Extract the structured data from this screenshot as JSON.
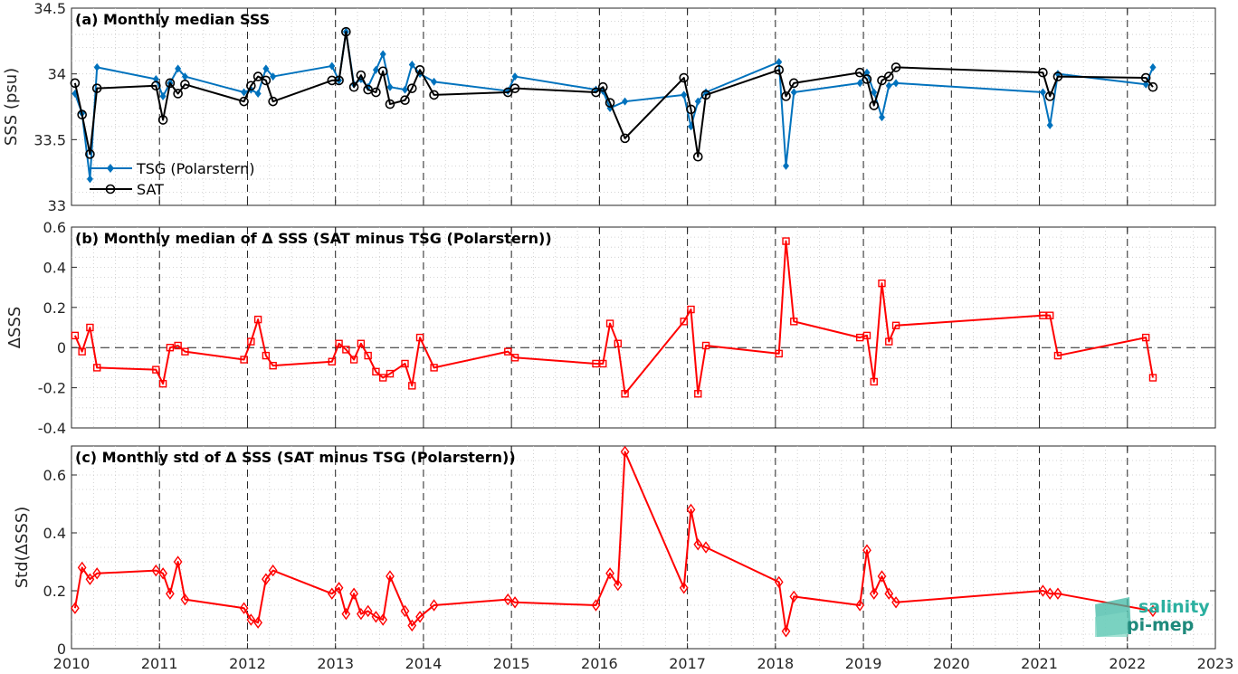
{
  "chart_data": [
    {
      "type": "line",
      "title": "(a) Monthly median SSS",
      "ylabel": "SSS (psu)",
      "xlim": [
        2010,
        2023
      ],
      "ylim": [
        33,
        34.5
      ],
      "yticks": [
        "33",
        "33.5",
        "34",
        "34.5"
      ],
      "xticks": [
        "2010",
        "2011",
        "2012",
        "2013",
        "2014",
        "2015",
        "2016",
        "2017",
        "2018",
        "2019",
        "2020",
        "2021",
        "2022",
        "2023"
      ],
      "grid": "dotted minor, dashed yearly verticals",
      "legend_position": "lower-left",
      "series": [
        {
          "name": "TSG (Polarstern)",
          "color": "#0072BD",
          "marker": "filled-diamond",
          "points": [
            [
              2010.04,
              33.85
            ],
            [
              2010.12,
              33.7
            ],
            [
              2010.21,
              33.2
            ],
            [
              2010.29,
              34.05
            ],
            [
              2010.96,
              33.96
            ],
            [
              2011.04,
              33.83
            ],
            [
              2011.12,
              33.93
            ],
            [
              2011.21,
              34.04
            ],
            [
              2011.29,
              33.98
            ],
            [
              2011.96,
              33.86
            ],
            [
              2012.04,
              33.88
            ],
            [
              2012.12,
              33.85
            ],
            [
              2012.21,
              34.04
            ],
            [
              2012.29,
              33.98
            ],
            [
              2012.96,
              34.06
            ],
            [
              2013.04,
              33.95
            ],
            [
              2013.12,
              34.32
            ],
            [
              2013.21,
              33.92
            ],
            [
              2013.29,
              33.96
            ],
            [
              2013.37,
              33.9
            ],
            [
              2013.46,
              34.03
            ],
            [
              2013.54,
              34.15
            ],
            [
              2013.62,
              33.9
            ],
            [
              2013.79,
              33.88
            ],
            [
              2013.87,
              34.07
            ],
            [
              2013.96,
              34.0
            ],
            [
              2014.12,
              33.94
            ],
            [
              2014.96,
              33.87
            ],
            [
              2015.04,
              33.98
            ],
            [
              2015.96,
              33.88
            ],
            [
              2016.04,
              33.87
            ],
            [
              2016.12,
              33.74
            ],
            [
              2016.29,
              33.79
            ],
            [
              2016.96,
              33.84
            ],
            [
              2017.04,
              33.6
            ],
            [
              2017.12,
              33.79
            ],
            [
              2017.21,
              33.86
            ],
            [
              2018.04,
              34.09
            ],
            [
              2018.12,
              33.3
            ],
            [
              2018.21,
              33.86
            ],
            [
              2018.96,
              33.93
            ],
            [
              2019.04,
              34.01
            ],
            [
              2019.12,
              33.86
            ],
            [
              2019.21,
              33.67
            ],
            [
              2019.29,
              33.91
            ],
            [
              2019.37,
              33.93
            ],
            [
              2021.04,
              33.86
            ],
            [
              2021.12,
              33.61
            ],
            [
              2021.21,
              34.0
            ],
            [
              2022.21,
              33.92
            ],
            [
              2022.29,
              34.05
            ]
          ]
        },
        {
          "name": "SAT",
          "color": "#000000",
          "marker": "open-circle",
          "points": [
            [
              2010.04,
              33.93
            ],
            [
              2010.12,
              33.69
            ],
            [
              2010.21,
              33.39
            ],
            [
              2010.29,
              33.89
            ],
            [
              2010.96,
              33.91
            ],
            [
              2011.04,
              33.65
            ],
            [
              2011.12,
              33.93
            ],
            [
              2011.21,
              33.85
            ],
            [
              2011.29,
              33.92
            ],
            [
              2011.96,
              33.79
            ],
            [
              2012.04,
              33.91
            ],
            [
              2012.12,
              33.98
            ],
            [
              2012.21,
              33.95
            ],
            [
              2012.29,
              33.79
            ],
            [
              2012.96,
              33.95
            ],
            [
              2013.04,
              33.95
            ],
            [
              2013.12,
              34.32
            ],
            [
              2013.21,
              33.9
            ],
            [
              2013.29,
              33.99
            ],
            [
              2013.37,
              33.88
            ],
            [
              2013.46,
              33.86
            ],
            [
              2013.54,
              34.02
            ],
            [
              2013.62,
              33.77
            ],
            [
              2013.79,
              33.8
            ],
            [
              2013.87,
              33.89
            ],
            [
              2013.96,
              34.03
            ],
            [
              2014.12,
              33.84
            ],
            [
              2014.96,
              33.86
            ],
            [
              2015.04,
              33.89
            ],
            [
              2015.96,
              33.86
            ],
            [
              2016.04,
              33.9
            ],
            [
              2016.12,
              33.78
            ],
            [
              2016.29,
              33.51
            ],
            [
              2016.96,
              33.97
            ],
            [
              2017.04,
              33.73
            ],
            [
              2017.12,
              33.37
            ],
            [
              2017.21,
              33.84
            ],
            [
              2018.04,
              34.03
            ],
            [
              2018.12,
              33.83
            ],
            [
              2018.21,
              33.93
            ],
            [
              2018.96,
              34.01
            ],
            [
              2019.04,
              33.96
            ],
            [
              2019.12,
              33.76
            ],
            [
              2019.21,
              33.95
            ],
            [
              2019.29,
              33.98
            ],
            [
              2019.37,
              34.05
            ],
            [
              2021.04,
              34.01
            ],
            [
              2021.12,
              33.83
            ],
            [
              2021.21,
              33.98
            ],
            [
              2022.21,
              33.97
            ],
            [
              2022.29,
              33.9
            ]
          ]
        }
      ]
    },
    {
      "type": "line",
      "title": "(b) Monthly median of Δ SSS (SAT minus TSG (Polarstern))",
      "ylabel": "ΔSSS",
      "xlim": [
        2010,
        2023
      ],
      "ylim": [
        -0.4,
        0.6
      ],
      "yticks": [
        "-0.4",
        "-0.2",
        "0",
        "0.2",
        "0.4",
        "0.6"
      ],
      "xticks": [
        "2010",
        "2011",
        "2012",
        "2013",
        "2014",
        "2015",
        "2016",
        "2017",
        "2018",
        "2019",
        "2020",
        "2021",
        "2022",
        "2023"
      ],
      "zero_line": "dashed",
      "series": [
        {
          "color": "#FF0000",
          "marker": "open-square",
          "points": [
            [
              2010.04,
              0.06
            ],
            [
              2010.12,
              -0.02
            ],
            [
              2010.21,
              0.1
            ],
            [
              2010.29,
              -0.1
            ],
            [
              2010.96,
              -0.11
            ],
            [
              2011.04,
              -0.18
            ],
            [
              2011.12,
              0.0
            ],
            [
              2011.21,
              0.01
            ],
            [
              2011.29,
              -0.02
            ],
            [
              2011.96,
              -0.06
            ],
            [
              2012.04,
              0.03
            ],
            [
              2012.12,
              0.14
            ],
            [
              2012.21,
              -0.04
            ],
            [
              2012.29,
              -0.09
            ],
            [
              2012.96,
              -0.07
            ],
            [
              2013.04,
              0.02
            ],
            [
              2013.12,
              -0.01
            ],
            [
              2013.21,
              -0.06
            ],
            [
              2013.29,
              0.02
            ],
            [
              2013.37,
              -0.04
            ],
            [
              2013.46,
              -0.12
            ],
            [
              2013.54,
              -0.15
            ],
            [
              2013.62,
              -0.13
            ],
            [
              2013.79,
              -0.08
            ],
            [
              2013.87,
              -0.19
            ],
            [
              2013.96,
              0.05
            ],
            [
              2014.12,
              -0.1
            ],
            [
              2014.96,
              -0.02
            ],
            [
              2015.04,
              -0.05
            ],
            [
              2015.96,
              -0.08
            ],
            [
              2016.04,
              -0.08
            ],
            [
              2016.12,
              0.12
            ],
            [
              2016.21,
              0.02
            ],
            [
              2016.29,
              -0.23
            ],
            [
              2016.96,
              0.13
            ],
            [
              2017.04,
              0.19
            ],
            [
              2017.12,
              -0.23
            ],
            [
              2017.21,
              0.01
            ],
            [
              2018.04,
              -0.03
            ],
            [
              2018.12,
              0.53
            ],
            [
              2018.21,
              0.13
            ],
            [
              2018.96,
              0.05
            ],
            [
              2019.04,
              0.06
            ],
            [
              2019.12,
              -0.17
            ],
            [
              2019.21,
              0.32
            ],
            [
              2019.29,
              0.03
            ],
            [
              2019.37,
              0.11
            ],
            [
              2021.04,
              0.16
            ],
            [
              2021.12,
              0.16
            ],
            [
              2021.21,
              -0.04
            ],
            [
              2022.21,
              0.05
            ],
            [
              2022.29,
              -0.15
            ]
          ]
        }
      ]
    },
    {
      "type": "line",
      "title": "(c) Monthly std of Δ SSS (SAT minus TSG (Polarstern))",
      "ylabel": "Std(ΔSSS)",
      "xlim": [
        2010,
        2023
      ],
      "ylim": [
        0,
        0.7
      ],
      "yticks": [
        "0",
        "0.2",
        "0.4",
        "0.6"
      ],
      "xticks": [
        "2010",
        "2011",
        "2012",
        "2013",
        "2014",
        "2015",
        "2016",
        "2017",
        "2018",
        "2019",
        "2020",
        "2021",
        "2022",
        "2023"
      ],
      "series": [
        {
          "color": "#FF0000",
          "marker": "open-diamond",
          "points": [
            [
              2010.04,
              0.14
            ],
            [
              2010.12,
              0.28
            ],
            [
              2010.21,
              0.24
            ],
            [
              2010.29,
              0.26
            ],
            [
              2010.96,
              0.27
            ],
            [
              2011.04,
              0.26
            ],
            [
              2011.12,
              0.19
            ],
            [
              2011.21,
              0.3
            ],
            [
              2011.29,
              0.17
            ],
            [
              2011.96,
              0.14
            ],
            [
              2012.04,
              0.1
            ],
            [
              2012.12,
              0.09
            ],
            [
              2012.21,
              0.24
            ],
            [
              2012.29,
              0.27
            ],
            [
              2012.96,
              0.19
            ],
            [
              2013.04,
              0.21
            ],
            [
              2013.12,
              0.12
            ],
            [
              2013.21,
              0.19
            ],
            [
              2013.29,
              0.12
            ],
            [
              2013.37,
              0.13
            ],
            [
              2013.46,
              0.11
            ],
            [
              2013.54,
              0.1
            ],
            [
              2013.62,
              0.25
            ],
            [
              2013.79,
              0.13
            ],
            [
              2013.87,
              0.08
            ],
            [
              2013.96,
              0.11
            ],
            [
              2014.12,
              0.15
            ],
            [
              2014.96,
              0.17
            ],
            [
              2015.04,
              0.16
            ],
            [
              2015.96,
              0.15
            ],
            [
              2016.12,
              0.26
            ],
            [
              2016.21,
              0.22
            ],
            [
              2016.29,
              0.68
            ],
            [
              2016.96,
              0.21
            ],
            [
              2017.04,
              0.48
            ],
            [
              2017.12,
              0.36
            ],
            [
              2017.21,
              0.35
            ],
            [
              2018.04,
              0.23
            ],
            [
              2018.12,
              0.06
            ],
            [
              2018.21,
              0.18
            ],
            [
              2018.96,
              0.15
            ],
            [
              2019.04,
              0.34
            ],
            [
              2019.12,
              0.19
            ],
            [
              2019.21,
              0.25
            ],
            [
              2019.29,
              0.19
            ],
            [
              2019.37,
              0.16
            ],
            [
              2021.04,
              0.2
            ],
            [
              2021.12,
              0.19
            ],
            [
              2021.21,
              0.19
            ],
            [
              2022.29,
              0.13
            ]
          ]
        }
      ]
    }
  ],
  "logo": {
    "line1": "salinity",
    "line2": "pi-mep"
  }
}
